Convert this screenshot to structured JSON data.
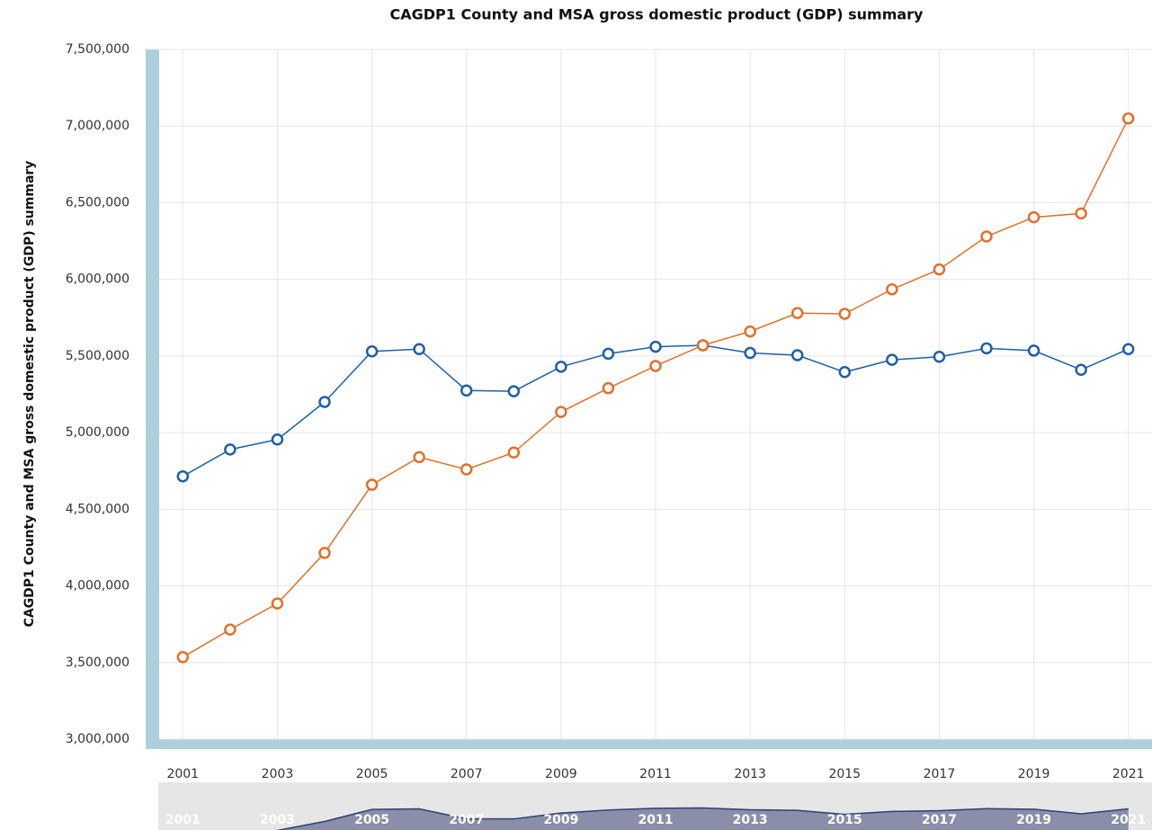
{
  "chart_data": {
    "type": "line",
    "title": "CAGDP1 County and MSA gross domestic product (GDP) summary",
    "ylabel": "CAGDP1 County and MSA gross domestic product (GDP) summary",
    "x": [
      2001,
      2002,
      2003,
      2004,
      2005,
      2006,
      2007,
      2008,
      2009,
      2010,
      2011,
      2012,
      2013,
      2014,
      2015,
      2016,
      2017,
      2018,
      2019,
      2020,
      2021
    ],
    "series": [
      {
        "color": "#1f5fa6",
        "values": [
          4715000,
          4890000,
          4955000,
          5200000,
          5530000,
          5545000,
          5275000,
          5270000,
          5430000,
          5515000,
          5560000,
          5570000,
          5520000,
          5505000,
          5395000,
          5475000,
          5495000,
          5550000,
          5535000,
          5410000,
          5545000
        ]
      },
      {
        "color": "#e0702a",
        "values": [
          3535000,
          3715000,
          3885000,
          4215000,
          4660000,
          4840000,
          4760000,
          4870000,
          5135000,
          5290000,
          5435000,
          5570000,
          5660000,
          5780000,
          5775000,
          5935000,
          6065000,
          6280000,
          6405000,
          6430000,
          7050000
        ]
      }
    ],
    "xlim": [
      2000.5,
      2021.5
    ],
    "xticks": [
      2001,
      2003,
      2005,
      2007,
      2009,
      2011,
      2013,
      2015,
      2017,
      2019,
      2021
    ],
    "ylim": [
      3000000,
      7500000
    ],
    "yticks": [
      {
        "value": 3000000,
        "label": "3,000,000"
      },
      {
        "value": 3500000,
        "label": "3,500,000"
      },
      {
        "value": 4000000,
        "label": "4,000,000"
      },
      {
        "value": 4500000,
        "label": "4,500,000"
      },
      {
        "value": 5000000,
        "label": "5,000,000"
      },
      {
        "value": 5500000,
        "label": "5,500,000"
      },
      {
        "value": 6000000,
        "label": "6,000,000"
      },
      {
        "value": 6500000,
        "label": "6,500,000"
      },
      {
        "value": 7000000,
        "label": "7,000,000"
      },
      {
        "value": 7500000,
        "label": "7,500,000"
      }
    ],
    "grid": true
  }
}
